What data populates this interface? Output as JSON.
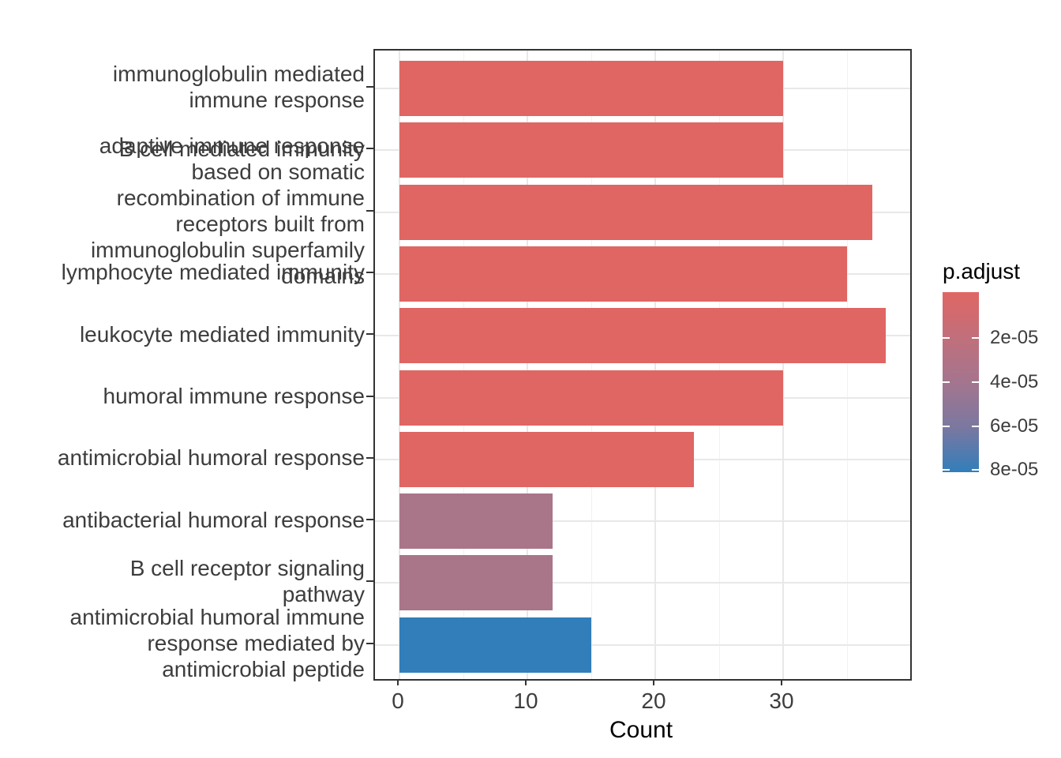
{
  "chart_data": {
    "type": "bar",
    "orientation": "horizontal",
    "title": "",
    "xlabel": "Count",
    "ylabel": "",
    "xlim": [
      0,
      40
    ],
    "x_major_ticks": [
      0,
      10,
      20,
      30
    ],
    "x_major_tick_labels": [
      "0",
      "10",
      "20",
      "30"
    ],
    "x_minor_ticks": [
      5,
      15,
      25,
      35
    ],
    "grid": true,
    "legend_position": "right",
    "bars": [
      {
        "category": "immunoglobulin mediated immune response",
        "label_lines": [
          "immunoglobulin mediated",
          "immune response"
        ],
        "count": 30,
        "color": "#df6663"
      },
      {
        "category": "B cell mediated immunity",
        "label_lines": [
          "B cell mediated immunity"
        ],
        "count": 30,
        "color": "#df6663"
      },
      {
        "category": "adaptive immune response based on somatic recombination of immune receptors built from immunoglobulin superfamily domains",
        "label_lines": [
          "adaptive immune response",
          "based on somatic",
          "recombination of immune",
          "receptors built from",
          "immunoglobulin superfamily",
          "domains"
        ],
        "count": 37,
        "color": "#df6663"
      },
      {
        "category": "lymphocyte mediated immunity",
        "label_lines": [
          "lymphocyte mediated immunity"
        ],
        "count": 35,
        "color": "#df6663"
      },
      {
        "category": "leukocyte mediated immunity",
        "label_lines": [
          "leukocyte mediated immunity"
        ],
        "count": 38,
        "color": "#df6663"
      },
      {
        "category": "humoral immune response",
        "label_lines": [
          "humoral immune response"
        ],
        "count": 30,
        "color": "#df6663"
      },
      {
        "category": "antimicrobial humoral response",
        "label_lines": [
          "antimicrobial humoral response"
        ],
        "count": 23,
        "color": "#df6663"
      },
      {
        "category": "antibacterial humoral response",
        "label_lines": [
          "antibacterial humoral response"
        ],
        "count": 12,
        "color": "#a97588"
      },
      {
        "category": "B cell receptor signaling pathway",
        "label_lines": [
          "B cell receptor signaling",
          "pathway"
        ],
        "count": 12,
        "color": "#a97588"
      },
      {
        "category": "antimicrobial humoral immune response mediated by antimicrobial peptide",
        "label_lines": [
          "antimicrobial humoral immune",
          "response mediated by",
          "antimicrobial peptide"
        ],
        "count": 15,
        "color": "#327eba"
      }
    ],
    "legend": {
      "title": "p.adjust",
      "tick_labels": [
        "2e-05",
        "4e-05",
        "6e-05",
        "8e-05"
      ],
      "gradient_stops": [
        "#e06663",
        "#c16f7b",
        "#a4758e",
        "#7b78a0",
        "#327eba"
      ],
      "low_color": "#e06663",
      "high_color": "#327eba"
    }
  }
}
